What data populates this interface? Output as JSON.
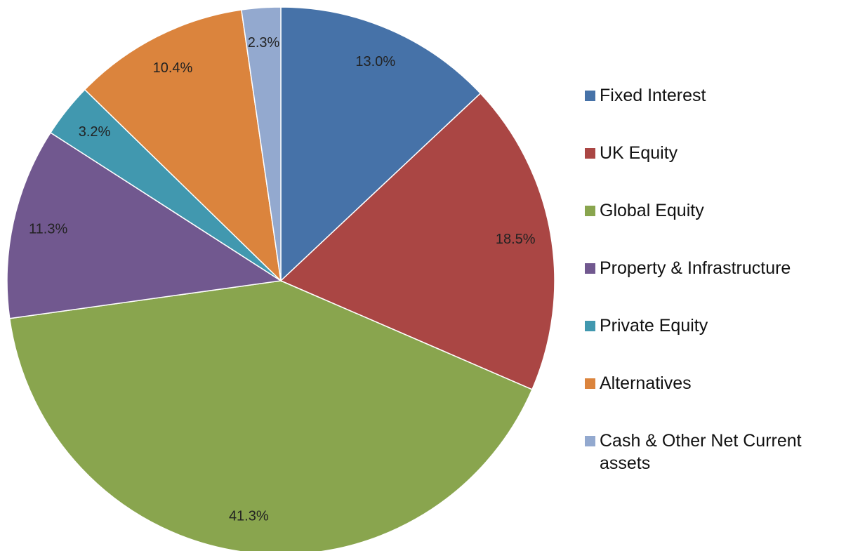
{
  "chart_data": {
    "type": "pie",
    "categories": [
      "Fixed Interest",
      "UK Equity",
      "Global Equity",
      "Property & Infrastructure",
      "Private Equity",
      "Alternatives",
      "Cash & Other Net Current assets"
    ],
    "values": [
      13.0,
      18.5,
      41.3,
      11.3,
      3.2,
      10.4,
      2.3
    ],
    "value_labels": [
      "13.0%",
      "18.5%",
      "41.3%",
      "11.3%",
      "3.2%",
      "10.4%",
      "2.3%"
    ],
    "colors": [
      "#4672a8",
      "#aa4644",
      "#89a54e",
      "#71588f",
      "#4198af",
      "#db843d",
      "#93a9cf"
    ],
    "legend": "right"
  }
}
